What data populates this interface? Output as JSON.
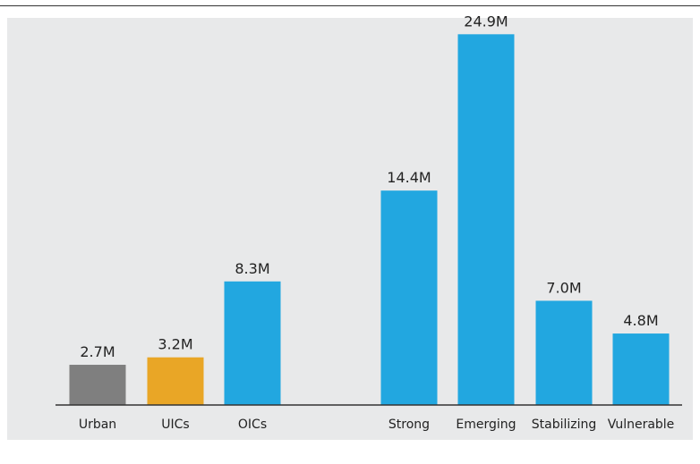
{
  "chart_data": {
    "type": "bar",
    "categories": [
      "Urban",
      "UICs",
      "OICs",
      "Strong",
      "Emerging",
      "Stabilizing",
      "Vulnerable"
    ],
    "values": [
      2.7,
      3.2,
      8.3,
      14.4,
      24.9,
      7.0,
      4.8
    ],
    "value_labels": [
      "2.7M",
      "3.2M",
      "8.3M",
      "14.4M",
      "24.9M",
      "7.0M",
      "4.8M"
    ],
    "bar_colors": [
      "#7f7f7f",
      "#e9a626",
      "#22a7e0",
      "#22a7e0",
      "#22a7e0",
      "#22a7e0",
      "#22a7e0"
    ],
    "ylim": [
      0,
      26
    ],
    "unit": "M",
    "grid": false,
    "legend": "none",
    "colors": {
      "background": "#e8e9ea",
      "axis": "#333333",
      "text": "#222222"
    }
  }
}
